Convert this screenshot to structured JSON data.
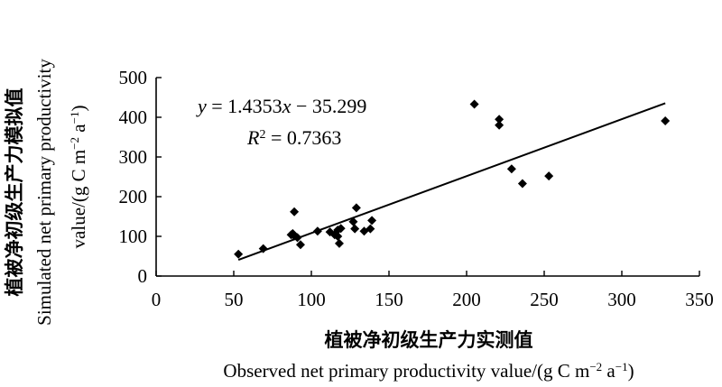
{
  "chart_data": {
    "type": "scatter",
    "xlabel_cn": "植被净初级生产力实测值",
    "xlabel_en": "Observed net primary productivity value/(g C m",
    "xlabel_en_sup": "−2",
    "xlabel_en_tail": " a",
    "xlabel_en_sup2": "−1",
    "xlabel_en_end": ")",
    "ylabel_cn": "植被净初级生产力模拟值",
    "ylabel_en_1": "Simulated net primary productivity",
    "ylabel_en_2": "value/(g C m",
    "ylabel_en_2_sup": "−2",
    "ylabel_en_2_tail": " a",
    "ylabel_en_2_sup2": "−1",
    "ylabel_en_2_end": ")",
    "xlim": [
      0,
      350
    ],
    "ylim": [
      0,
      500
    ],
    "xticks": [
      "0",
      "50",
      "100",
      "150",
      "200",
      "250",
      "300",
      "350"
    ],
    "yticks": [
      "0",
      "100",
      "200",
      "300",
      "400",
      "500"
    ],
    "equation": {
      "y": "y",
      "eq": " = 1.4353",
      "x": "x",
      "rest": " − 35.299",
      "r": "R",
      "r_sup": "2",
      "r_rest": " = 0.7363"
    },
    "fit": {
      "slope": 1.4353,
      "intercept": -35.299,
      "x_range": [
        53,
        328
      ]
    },
    "points": [
      [
        53,
        55
      ],
      [
        69,
        69
      ],
      [
        87,
        104
      ],
      [
        88,
        107
      ],
      [
        89,
        101
      ],
      [
        89,
        162
      ],
      [
        91,
        97
      ],
      [
        93,
        79
      ],
      [
        104,
        113
      ],
      [
        112,
        111
      ],
      [
        115,
        104
      ],
      [
        117,
        100
      ],
      [
        117,
        116
      ],
      [
        118,
        82
      ],
      [
        119,
        120
      ],
      [
        127,
        137
      ],
      [
        128,
        119
      ],
      [
        129,
        172
      ],
      [
        134,
        113
      ],
      [
        138,
        119
      ],
      [
        139,
        140
      ],
      [
        205,
        433
      ],
      [
        221,
        395
      ],
      [
        221,
        380
      ],
      [
        229,
        270
      ],
      [
        236,
        233
      ],
      [
        253,
        252
      ],
      [
        328,
        391
      ]
    ]
  }
}
